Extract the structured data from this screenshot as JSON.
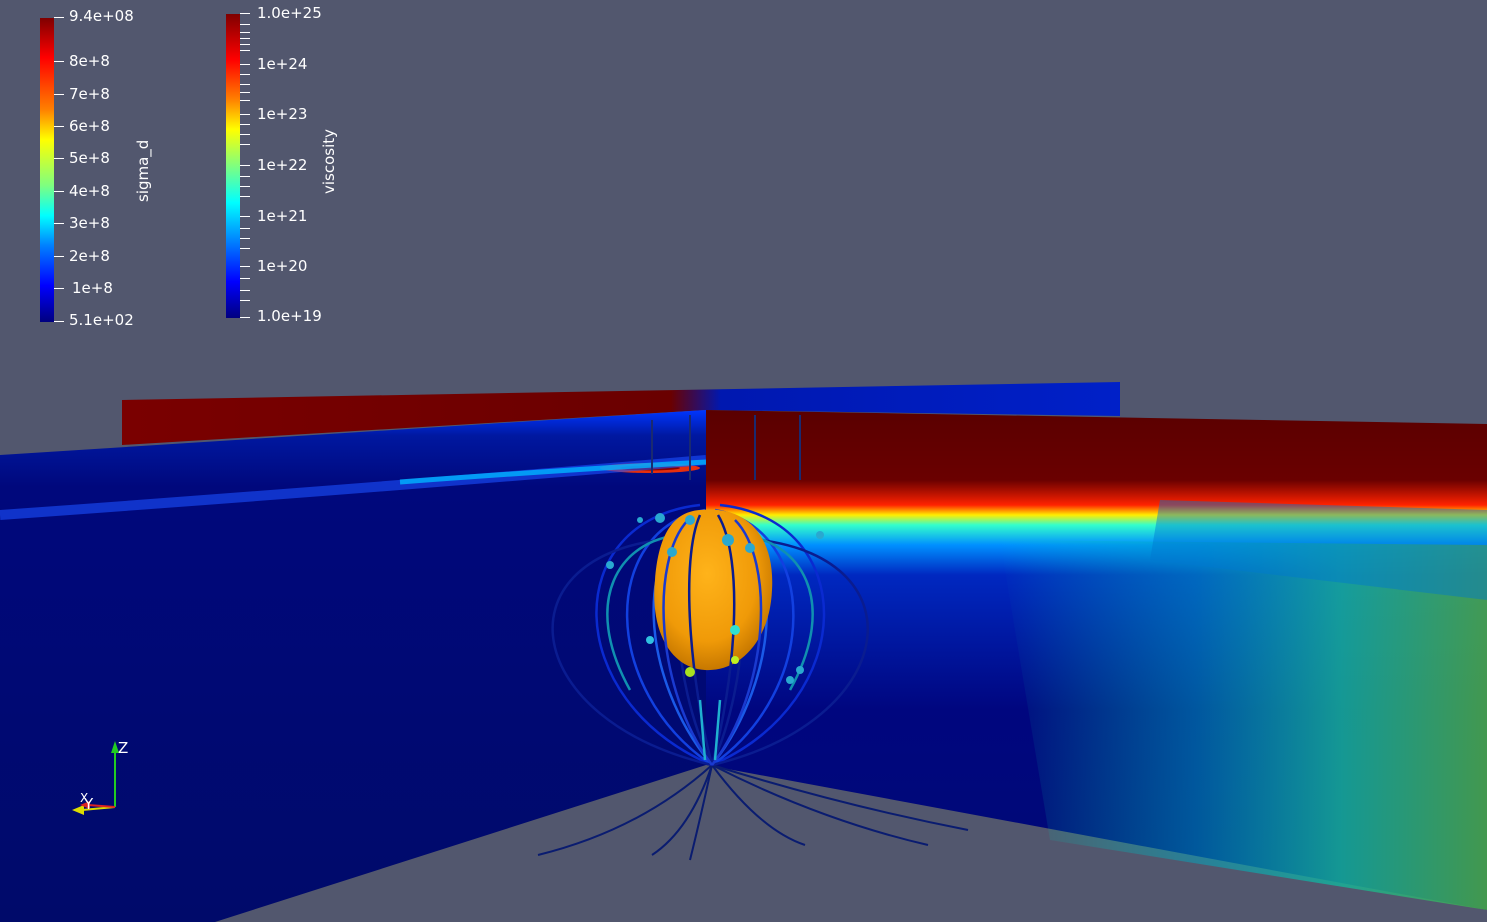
{
  "legends": {
    "sigma_d": {
      "title": "sigma_d",
      "max_label": "9.4e+08",
      "min_label": "5.1e+02",
      "tick_labels": [
        "8e+8",
        "7e+8",
        "6e+8",
        "5e+8",
        "4e+8",
        "3e+8",
        "2e+8",
        "1e+8"
      ],
      "range": [
        510,
        940000000
      ],
      "scale": "linear"
    },
    "viscosity": {
      "title": "viscosity",
      "max_label": "1.0e+25",
      "min_label": "1.0e+19",
      "tick_labels": [
        "1e+24",
        "1e+23",
        "1e+22",
        "1e+21",
        "1e+20"
      ],
      "range": [
        1e+19,
        1e+25
      ],
      "scale": "log"
    }
  },
  "orientation_axes": {
    "z_label": "Z",
    "y_label": "Y",
    "x_label": "X"
  },
  "colors": {
    "background": "#52576e",
    "colormap": [
      "#00007f",
      "#0000ff",
      "#00bfff",
      "#3fffbf",
      "#ffff00",
      "#ff7f00",
      "#ff0000",
      "#7f0000"
    ],
    "isosurface": "#f0a010",
    "axis_z": "#22cc22",
    "axis_y": "#dddd00",
    "axis_x": "#dd2222"
  }
}
